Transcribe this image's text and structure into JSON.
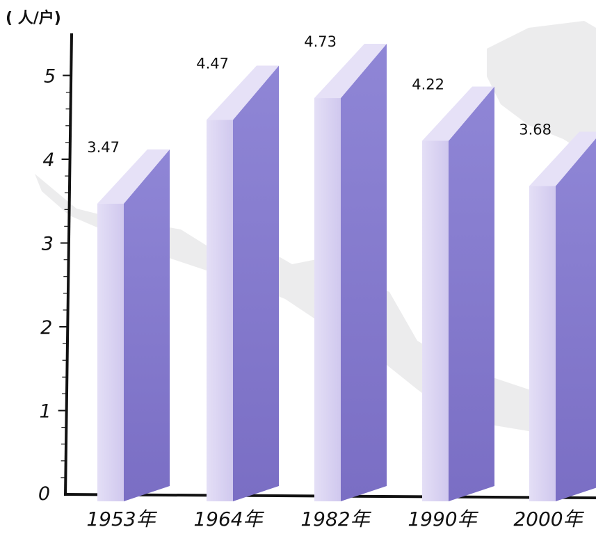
{
  "chart_data": {
    "type": "bar",
    "unit_label": "( 人/户)",
    "categories": [
      "1953年",
      "1964年",
      "1982年",
      "1990年",
      "2000年"
    ],
    "values": [
      3.47,
      4.47,
      4.73,
      4.22,
      3.68
    ],
    "value_labels": [
      "3.47",
      "4.47",
      "4.73",
      "4.22",
      "3.68"
    ],
    "yticks": [
      "0",
      "1",
      "2",
      "3",
      "4",
      "5"
    ],
    "ylim": [
      0,
      5.3
    ],
    "grid": false,
    "colors": {
      "bar_front": "#d9d3f2",
      "bar_side": "#8a7fcf",
      "bar_top": "#e6e1f7",
      "axis": "#111111"
    }
  }
}
